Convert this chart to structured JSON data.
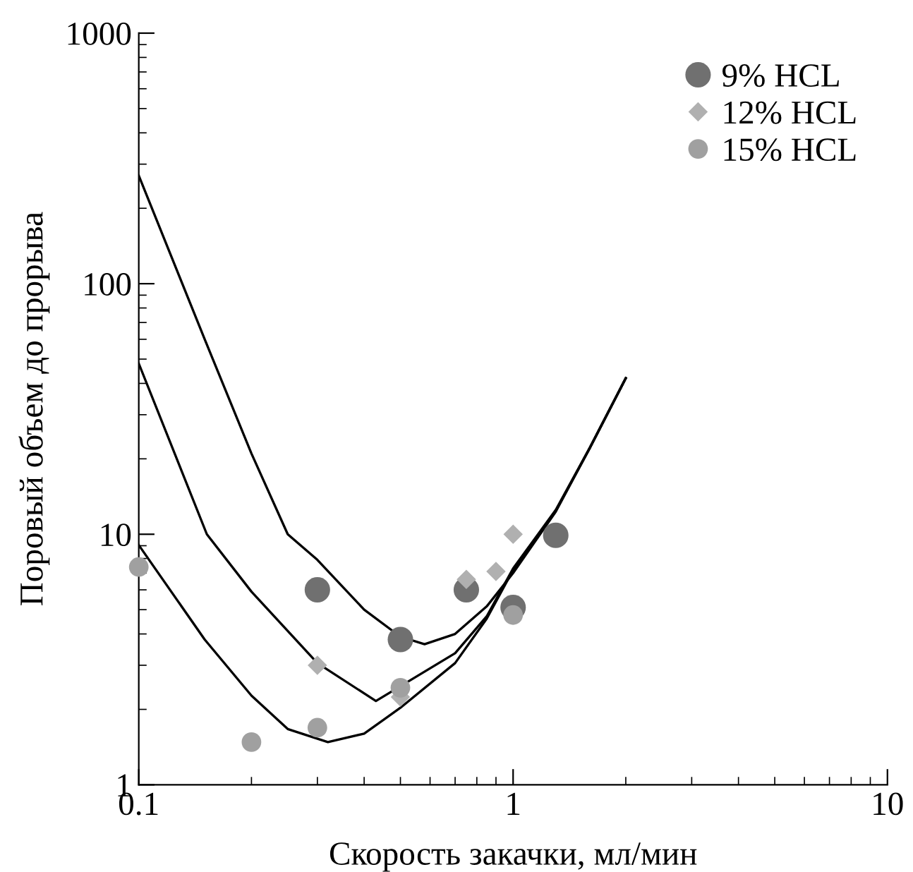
{
  "chart_data": {
    "type": "scatter",
    "xlabel": "Скорость закачки, мл/мин",
    "ylabel": "Поровый объем до прорыва",
    "log": "xy",
    "xlim": [
      0.1,
      10
    ],
    "ylim": [
      1,
      1000
    ],
    "xticks": [
      0.1,
      1,
      10
    ],
    "yticks": [
      1,
      10,
      100,
      1000
    ],
    "grid": false,
    "legend": "top right",
    "series": [
      {
        "name": "9% HCL",
        "color": "#707070",
        "marker": "circle",
        "x": [
          0.3,
          0.5,
          0.75,
          1.0,
          1.3
        ],
        "values": [
          6.0,
          3.8,
          6.0,
          5.1,
          9.9
        ]
      },
      {
        "name": "12% HCL",
        "color": "#b0b0b0",
        "marker": "diamond",
        "x": [
          0.3,
          0.5,
          0.75,
          0.9,
          1.0
        ],
        "values": [
          3.0,
          2.24,
          6.6,
          7.1,
          10
        ]
      },
      {
        "name": "15% HCL",
        "color": "#a0a0a0",
        "marker": "circle",
        "x": [
          0.1,
          0.2,
          0.3,
          0.5,
          1.0
        ],
        "values": [
          7.4,
          1.48,
          1.69,
          2.44,
          4.76
        ]
      },
      {
        "type": "line",
        "color": "#000000",
        "marker": "none",
        "x": [
          0.1,
          0.15,
          0.2,
          0.25,
          0.3,
          0.4,
          0.5,
          0.58,
          0.7,
          0.85,
          1.0,
          1.3,
          1.6,
          2.0
        ],
        "values": [
          270,
          60,
          21,
          10,
          7.9,
          5.0,
          3.9,
          3.64,
          4.0,
          5.15,
          7.0,
          12.3,
          22,
          42
        ]
      },
      {
        "type": "line",
        "color": "#000000",
        "marker": "none",
        "x": [
          0.1,
          0.152,
          0.2,
          0.3,
          0.43,
          0.7,
          0.85,
          1.0,
          1.3,
          1.6,
          2.0
        ],
        "values": [
          48,
          10,
          5.9,
          3.06,
          2.16,
          3.35,
          4.7,
          7.3,
          12.5,
          22,
          42
        ]
      },
      {
        "type": "line",
        "color": "#000000",
        "marker": "none",
        "x": [
          0.1,
          0.15,
          0.2,
          0.25,
          0.32,
          0.4,
          0.5,
          0.7,
          0.85,
          1.0,
          1.3,
          1.6,
          2.0
        ],
        "values": [
          9.05,
          3.8,
          2.27,
          1.67,
          1.48,
          1.6,
          2.03,
          3.06,
          4.6,
          7.2,
          12.4,
          22,
          42
        ]
      }
    ]
  }
}
